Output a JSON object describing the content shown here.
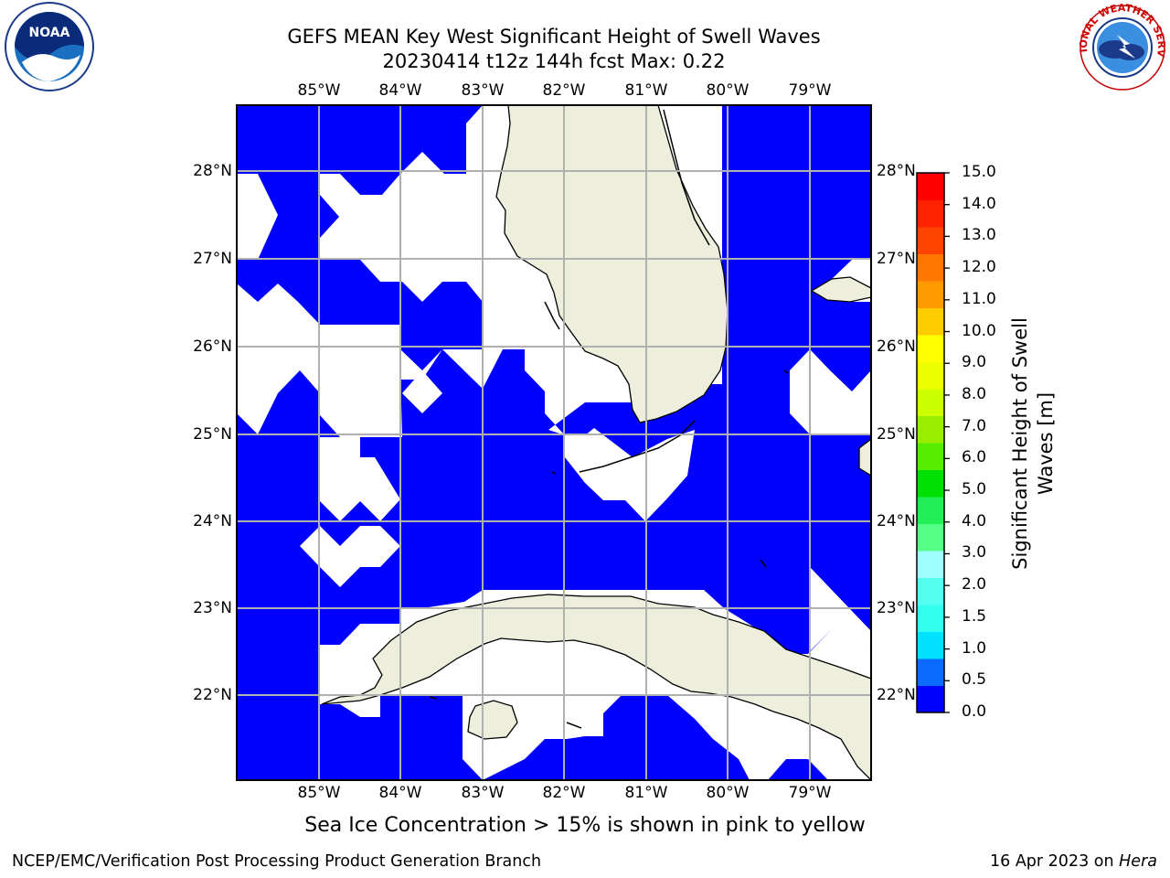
{
  "title": {
    "line1": "GEFS MEAN Key West Significant Height of Swell Waves",
    "line2": "20230414 t12z 144h fcst   Max: 0.22"
  },
  "logos": {
    "left": "NOAA",
    "left_ring_text": "NATIONAL OCEANIC AND ATMOSPHERIC ADMINISTRATION · U.S. DEPARTMENT OF COMMERCE",
    "right_ring_text": "NATIONAL WEATHER SERVICE"
  },
  "map": {
    "lon_labels": [
      "85°W",
      "84°W",
      "83°W",
      "82°W",
      "81°W",
      "80°W",
      "79°W"
    ],
    "lat_labels": [
      "28°N",
      "27°N",
      "26°N",
      "25°N",
      "24°N",
      "23°N",
      "22°N"
    ],
    "colors": {
      "water": "#0000ff",
      "land": "#eeeedd",
      "missing": "#ffffff",
      "grid": "#b0b0b0",
      "coast": "#000000"
    }
  },
  "colorbar": {
    "label_line1": "Significant Height of Swell",
    "label_line2": "Waves [m]",
    "ticks": [
      "15.0",
      "14.0",
      "13.0",
      "12.0",
      "11.0",
      "10.0",
      "9.0",
      "8.0",
      "7.0",
      "6.0",
      "5.0",
      "4.0",
      "3.0",
      "2.0",
      "1.5",
      "1.0",
      "0.5",
      "0.0"
    ],
    "colors_bottom_to_top": [
      "#0000ff",
      "#0b6bff",
      "#00e0ff",
      "#33ffee",
      "#55ffee",
      "#a0ffff",
      "#55ff88",
      "#22ee55",
      "#00e000",
      "#55ee00",
      "#99ee00",
      "#ccff00",
      "#eeff00",
      "#ffff00",
      "#ffcc00",
      "#ff9900",
      "#ff7700",
      "#ff4400",
      "#ff2200",
      "#ff0000"
    ]
  },
  "note": "Sea Ice Concentration > 15% is shown in pink to yellow",
  "footer": {
    "left": "NCEP/EMC/Verification Post Processing Product Generation Branch",
    "right_date": "16 Apr 2023 on ",
    "right_host": "Hera"
  }
}
